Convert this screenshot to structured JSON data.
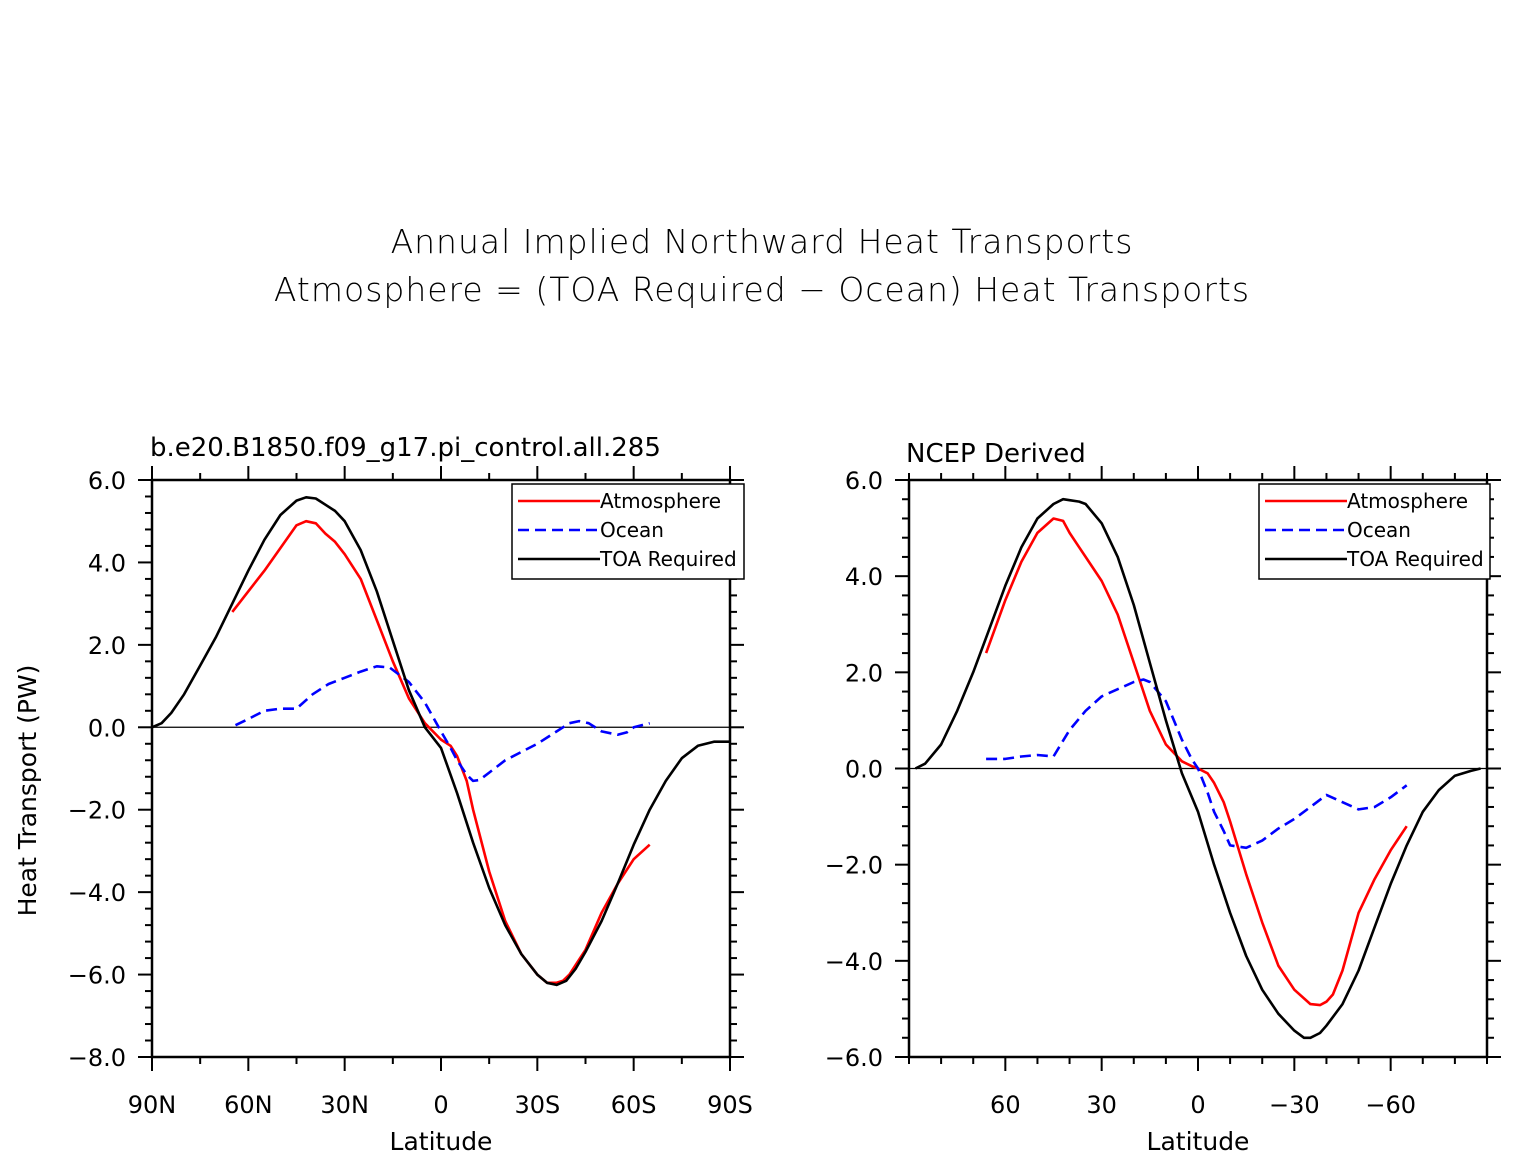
{
  "title": {
    "line1": "Annual Implied Northward Heat Transports",
    "line2": "Atmosphere = (TOA Required − Ocean) Heat Transports"
  },
  "colors": {
    "atmosphere": "#ff0000",
    "ocean": "#0000ff",
    "toa": "#000000"
  },
  "chart_data": [
    {
      "type": "line",
      "title": "b.e20.B1850.f09_g17.pi_control.all.285",
      "xlabel": "Latitude",
      "ylabel": "Heat Transport (PW)",
      "xlim": [
        90,
        -90
      ],
      "ylim": [
        -8,
        6
      ],
      "xticks": [
        90,
        60,
        30,
        0,
        -30,
        -60,
        -90
      ],
      "xtick_labels": [
        "90N",
        "60N",
        "30N",
        "0",
        "30S",
        "60S",
        "90S"
      ],
      "yticks": [
        -8,
        -6,
        -4,
        -2,
        0,
        2,
        4,
        6
      ],
      "ytick_labels": [
        "−8.0",
        "−6.0",
        "−4.0",
        "−2.0",
        "0.0",
        "2.0",
        "4.0",
        "6.0"
      ],
      "zero_line": true,
      "legend": [
        "Atmosphere",
        "Ocean",
        "TOA Required"
      ],
      "legend_position": "top-right",
      "series": [
        {
          "name": "Atmosphere",
          "style": "solid",
          "color": "#ff0000",
          "x": [
            65,
            55,
            45,
            42,
            39,
            36,
            33,
            30,
            25,
            20,
            15,
            10,
            5,
            0,
            -3,
            -5,
            -8,
            -10,
            -15,
            -20,
            -25,
            -30,
            -33,
            -36,
            -38,
            -40,
            -45,
            -50,
            -55,
            -60,
            -65
          ],
          "y": [
            2.8,
            3.8,
            4.9,
            5.0,
            4.95,
            4.7,
            4.5,
            4.2,
            3.6,
            2.6,
            1.6,
            0.7,
            0.1,
            -0.3,
            -0.45,
            -0.7,
            -1.3,
            -2.0,
            -3.5,
            -4.7,
            -5.5,
            -6.0,
            -6.2,
            -6.2,
            -6.15,
            -6.0,
            -5.4,
            -4.5,
            -3.8,
            -3.2,
            -2.85
          ]
        },
        {
          "name": "Ocean",
          "style": "dashed",
          "color": "#0000ff",
          "x": [
            64,
            60,
            55,
            50,
            45,
            40,
            35,
            30,
            25,
            20,
            16,
            10,
            5,
            0,
            -3,
            -5,
            -8,
            -10,
            -12,
            -15,
            -20,
            -25,
            -30,
            -35,
            -40,
            -43,
            -46,
            -50,
            -55,
            -58,
            -60,
            -65
          ],
          "y": [
            0.05,
            0.2,
            0.4,
            0.45,
            0.45,
            0.8,
            1.05,
            1.2,
            1.35,
            1.48,
            1.45,
            1.1,
            0.6,
            -0.1,
            -0.5,
            -0.8,
            -1.15,
            -1.3,
            -1.28,
            -1.1,
            -0.8,
            -0.6,
            -0.4,
            -0.15,
            0.1,
            0.15,
            0.1,
            -0.1,
            -0.18,
            -0.12,
            0.0,
            0.1
          ]
        },
        {
          "name": "TOA Required",
          "style": "solid",
          "color": "#000000",
          "x": [
            90,
            87,
            84,
            80,
            75,
            70,
            65,
            60,
            55,
            50,
            45,
            42,
            39,
            36,
            33,
            30,
            25,
            20,
            15,
            10,
            5,
            0,
            -5,
            -10,
            -15,
            -20,
            -25,
            -30,
            -33,
            -36,
            -39,
            -42,
            -45,
            -50,
            -55,
            -60,
            -65,
            -70,
            -75,
            -80,
            -85,
            -90
          ],
          "y": [
            0.0,
            0.1,
            0.35,
            0.8,
            1.5,
            2.2,
            3.0,
            3.8,
            4.55,
            5.15,
            5.5,
            5.58,
            5.55,
            5.4,
            5.25,
            5.0,
            4.3,
            3.3,
            2.1,
            0.9,
            0.0,
            -0.5,
            -1.6,
            -2.8,
            -3.9,
            -4.8,
            -5.5,
            -6.0,
            -6.2,
            -6.25,
            -6.15,
            -5.85,
            -5.45,
            -4.7,
            -3.8,
            -2.85,
            -2.0,
            -1.3,
            -0.75,
            -0.45,
            -0.35,
            -0.35
          ]
        }
      ]
    },
    {
      "type": "line",
      "title": "NCEP Derived",
      "xlabel": "Latitude",
      "ylabel": "",
      "xlim": [
        90,
        -90
      ],
      "ylim": [
        -6,
        6
      ],
      "xticks": [
        60,
        30,
        0,
        -30,
        -60
      ],
      "xtick_labels": [
        "60",
        "30",
        "0",
        "−30",
        "−60"
      ],
      "yticks": [
        -6,
        -4,
        -2,
        0,
        2,
        4,
        6
      ],
      "ytick_labels": [
        "−6.0",
        "−4.0",
        "−2.0",
        "0.0",
        "2.0",
        "4.0",
        "6.0"
      ],
      "zero_line": true,
      "legend": [
        "Atmosphere",
        "Ocean",
        "TOA Required"
      ],
      "legend_position": "top-right",
      "series": [
        {
          "name": "Atmosphere",
          "style": "solid",
          "color": "#ff0000",
          "x": [
            66,
            60,
            55,
            50,
            45,
            42,
            40,
            37,
            35,
            30,
            25,
            20,
            15,
            10,
            5,
            2,
            0,
            -3,
            -5,
            -8,
            -10,
            -15,
            -20,
            -25,
            -30,
            -35,
            -38,
            -40,
            -42,
            -45,
            -50,
            -55,
            -60,
            -65
          ],
          "y": [
            2.4,
            3.5,
            4.3,
            4.9,
            5.2,
            5.15,
            4.9,
            4.6,
            4.4,
            3.9,
            3.2,
            2.2,
            1.2,
            0.5,
            0.15,
            0.05,
            0.0,
            -0.1,
            -0.3,
            -0.7,
            -1.1,
            -2.2,
            -3.2,
            -4.1,
            -4.6,
            -4.9,
            -4.92,
            -4.85,
            -4.7,
            -4.2,
            -3.0,
            -2.3,
            -1.7,
            -1.2
          ]
        },
        {
          "name": "Ocean",
          "style": "dashed",
          "color": "#0000ff",
          "x": [
            66,
            60,
            55,
            50,
            45,
            40,
            35,
            30,
            25,
            20,
            17,
            15,
            10,
            5,
            2,
            0,
            -3,
            -5,
            -8,
            -10,
            -15,
            -20,
            -25,
            -30,
            -35,
            -40,
            -45,
            -50,
            -55,
            -60,
            -65
          ],
          "y": [
            0.2,
            0.2,
            0.25,
            0.28,
            0.25,
            0.8,
            1.2,
            1.5,
            1.65,
            1.8,
            1.85,
            1.8,
            1.4,
            0.6,
            0.2,
            0.0,
            -0.5,
            -0.9,
            -1.3,
            -1.6,
            -1.65,
            -1.5,
            -1.25,
            -1.05,
            -0.8,
            -0.55,
            -0.7,
            -0.85,
            -0.8,
            -0.6,
            -0.35
          ]
        },
        {
          "name": "TOA Required",
          "style": "solid",
          "color": "#000000",
          "x": [
            88,
            85,
            80,
            75,
            70,
            65,
            60,
            55,
            50,
            45,
            42,
            40,
            37,
            35,
            30,
            25,
            20,
            15,
            10,
            5,
            0,
            -5,
            -10,
            -15,
            -20,
            -25,
            -30,
            -33,
            -35,
            -38,
            -40,
            -45,
            -50,
            -55,
            -60,
            -65,
            -70,
            -75,
            -80,
            -85,
            -88
          ],
          "y": [
            0.0,
            0.1,
            0.5,
            1.2,
            2.0,
            2.9,
            3.8,
            4.6,
            5.2,
            5.5,
            5.6,
            5.58,
            5.55,
            5.5,
            5.1,
            4.4,
            3.4,
            2.2,
            1.0,
            -0.1,
            -0.9,
            -2.0,
            -3.0,
            -3.9,
            -4.6,
            -5.1,
            -5.45,
            -5.6,
            -5.6,
            -5.5,
            -5.35,
            -4.9,
            -4.2,
            -3.3,
            -2.4,
            -1.6,
            -0.9,
            -0.45,
            -0.15,
            -0.05,
            0.0
          ]
        }
      ]
    }
  ]
}
